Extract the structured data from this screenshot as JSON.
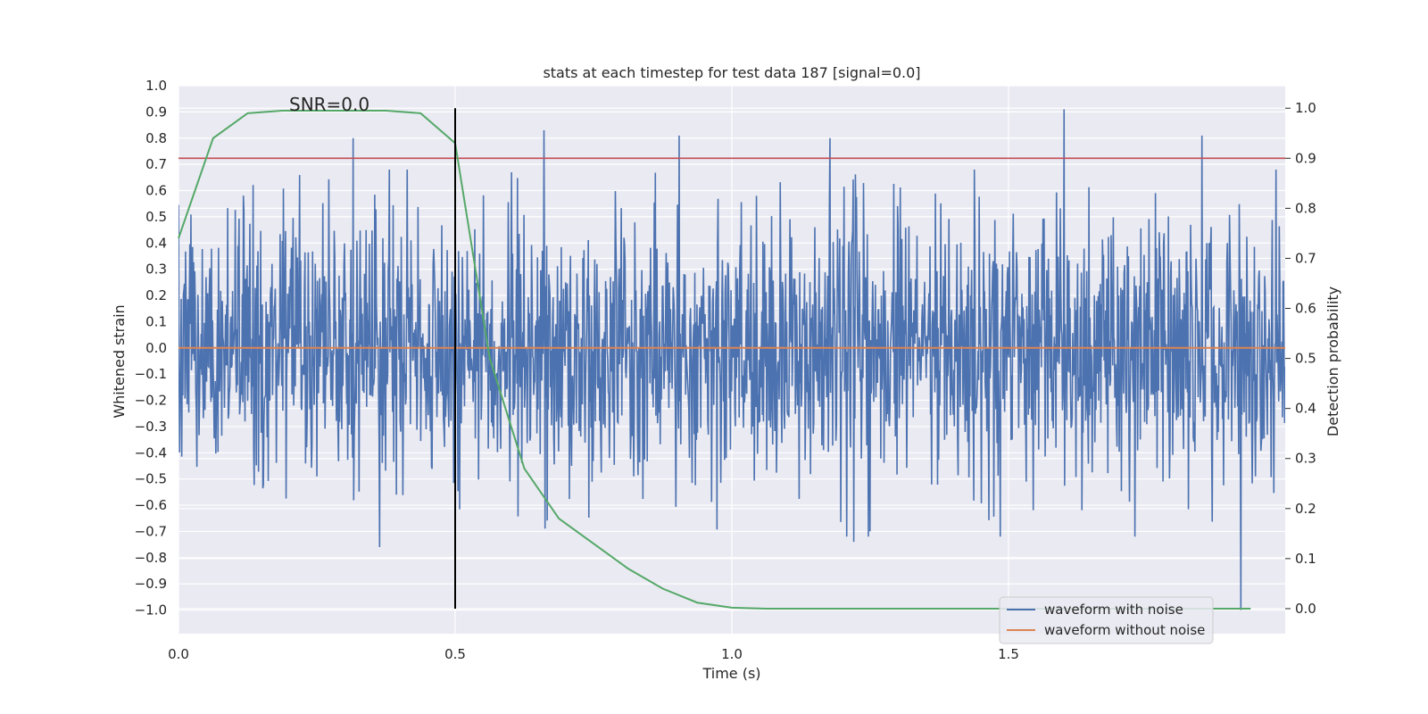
{
  "chart_data": {
    "type": "line",
    "title": "stats at each timestep for test data 187 [signal=0.0]",
    "xlabel": "Time (s)",
    "ylabel": "Whitened strain",
    "ylabel_right": "Detection probability",
    "annotation": "SNR=0.0",
    "xlim": [
      0.0,
      2.0
    ],
    "ylim": [
      -1.09,
      1.0
    ],
    "ylim_right": [
      -0.05,
      1.045
    ],
    "x_ticks": [
      0.0,
      0.5,
      1.0,
      1.5
    ],
    "x_tick_labels": [
      "0.0",
      "0.5",
      "1.0",
      "1.5"
    ],
    "y_ticks": [
      1.0,
      0.9,
      0.8,
      0.7,
      0.6,
      0.5,
      0.4,
      0.3,
      0.2,
      0.1,
      0.0,
      -0.1,
      -0.2,
      -0.3,
      -0.4,
      -0.5,
      -0.6,
      -0.7,
      -0.8,
      -0.9,
      -1.0
    ],
    "y_tick_labels": [
      "1.0",
      "0.9",
      "0.8",
      "0.7",
      "0.6",
      "0.5",
      "0.4",
      "0.3",
      "0.2",
      "0.1",
      "0.0",
      "−0.1",
      "−0.2",
      "−0.3",
      "−0.4",
      "−0.5",
      "−0.6",
      "−0.7",
      "−0.8",
      "−0.9",
      "−1.0"
    ],
    "y_ticks_right": [
      1.0,
      0.9,
      0.8,
      0.7,
      0.6,
      0.5,
      0.4,
      0.3,
      0.2,
      0.1,
      0.0
    ],
    "y_tick_labels_right": [
      "1.0",
      "0.9",
      "0.8",
      "0.7",
      "0.6",
      "0.5",
      "0.4",
      "0.3",
      "0.2",
      "0.1",
      "0.0"
    ],
    "grid": true,
    "legend_position": "bottom-right",
    "series": [
      {
        "name": "waveform with noise",
        "color": "#4c72b0",
        "axis": "left",
        "kind": "noise",
        "samples": 2048,
        "x_range": [
          0.0,
          2.0
        ],
        "std": 0.25,
        "peaks": [
          {
            "x": 0.316,
            "y": 0.8
          },
          {
            "x": 0.363,
            "y": -0.76
          },
          {
            "x": 0.66,
            "y": 0.83
          },
          {
            "x": 0.905,
            "y": 0.81
          },
          {
            "x": 1.177,
            "y": 0.8
          },
          {
            "x": 1.22,
            "y": -0.74
          },
          {
            "x": 1.6,
            "y": 0.91
          },
          {
            "x": 1.85,
            "y": 0.81
          },
          {
            "x": 1.92,
            "y": -1.0
          },
          {
            "x": 1.25,
            "y": -0.7
          }
        ]
      },
      {
        "name": "waveform without noise",
        "color": "#dd8452",
        "axis": "left",
        "x": [
          0.0,
          2.0
        ],
        "y": [
          0.0,
          0.0
        ]
      },
      {
        "name": "Detection probability",
        "color": "#55a868",
        "axis": "right",
        "x": [
          0.0,
          0.0625,
          0.125,
          0.1875,
          0.25,
          0.3125,
          0.375,
          0.4375,
          0.5,
          0.5625,
          0.625,
          0.6875,
          0.75,
          0.8125,
          0.875,
          0.9375,
          1.0,
          1.0625,
          1.5,
          1.9375
        ],
        "y": [
          0.74,
          0.94,
          0.99,
          0.995,
          0.995,
          0.995,
          0.995,
          0.99,
          0.93,
          0.5,
          0.28,
          0.18,
          0.13,
          0.08,
          0.04,
          0.012,
          0.002,
          0.0,
          0.0,
          0.0
        ]
      },
      {
        "name": "Threshold",
        "color": "#c44e52",
        "axis": "right",
        "x": [
          0.0,
          2.0
        ],
        "y": [
          0.9,
          0.9
        ]
      },
      {
        "name": "Marker",
        "color": "#000000",
        "axis": "right",
        "x": [
          0.5,
          0.5
        ],
        "y": [
          0.0,
          1.0
        ]
      }
    ],
    "legend": [
      {
        "label": "waveform with noise",
        "color": "#4c72b0"
      },
      {
        "label": "waveform without noise",
        "color": "#dd8452"
      }
    ]
  }
}
